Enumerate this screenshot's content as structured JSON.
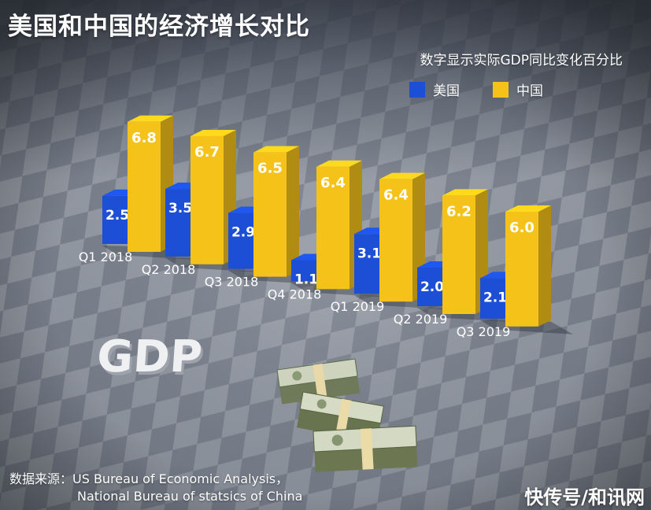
{
  "title": "美国和中国的经济增长对比",
  "subtitle": "数字显示实际GDP同比变化百分比",
  "legend": [
    {
      "label": "美国",
      "color": "#1c4fd6"
    },
    {
      "label": "中国",
      "color": "#f5c21a"
    }
  ],
  "decor_text": "GDP",
  "source": {
    "line1": "数据来源：US Bureau of Economic Analysis，",
    "line2": "National Bureau of statsics of China"
  },
  "watermark": "快传号/和讯网",
  "chart_data": {
    "type": "bar",
    "categories": [
      "Q1 2018",
      "Q2 2018",
      "Q3 2018",
      "Q4 2018",
      "Q1 2019",
      "Q2 2019",
      "Q3 2019"
    ],
    "series": [
      {
        "name": "美国",
        "values": [
          2.5,
          3.5,
          2.9,
          1.1,
          3.1,
          2.0,
          2.1
        ],
        "color": "#1c4fd6"
      },
      {
        "name": "中国",
        "values": [
          6.8,
          6.7,
          6.5,
          6.4,
          6.4,
          6.2,
          6.0
        ],
        "color": "#f5c21a"
      }
    ],
    "title": "美国和中国的经济增长对比",
    "subtitle": "数字显示实际GDP同比变化百分比",
    "legend_position": "top-right"
  }
}
